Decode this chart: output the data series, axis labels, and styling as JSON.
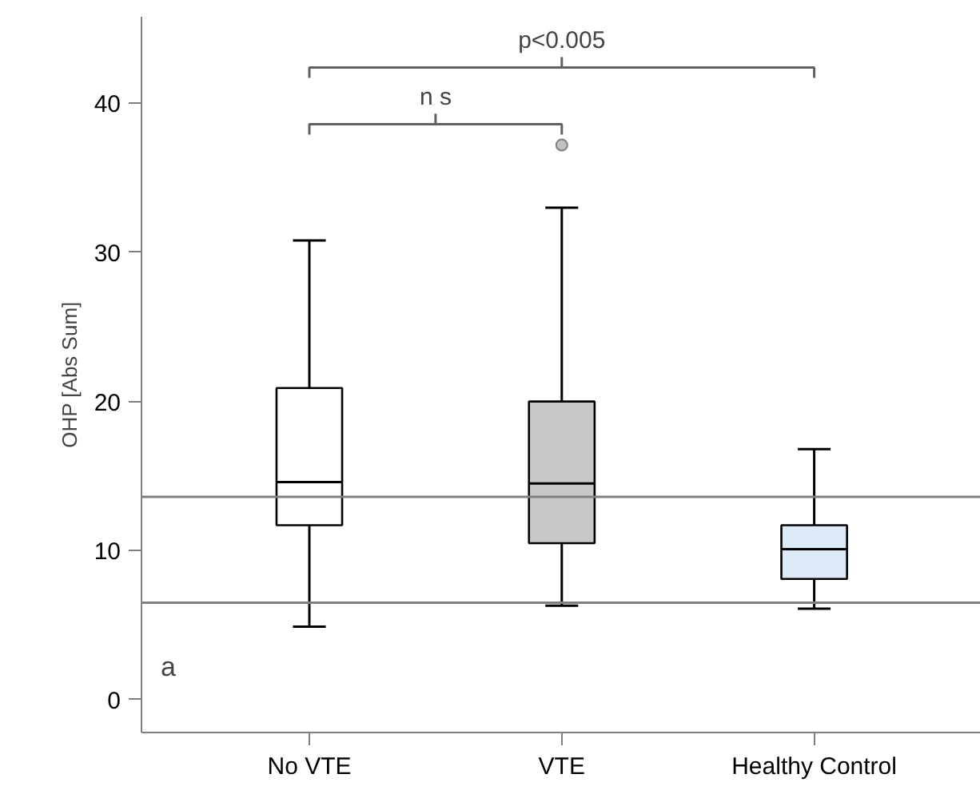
{
  "chart_data": {
    "type": "box",
    "ylabel": "OHP [Abs Sum]",
    "categories": [
      "No VTE",
      "VTE",
      "Healthy Control"
    ],
    "colors": [
      "#ffffff",
      "#c8c8c8",
      "#ddeaf8"
    ],
    "boxes": [
      {
        "low": 4.9,
        "q1": 11.7,
        "median": 14.6,
        "q3": 20.9,
        "high": 30.8
      },
      {
        "low": 6.3,
        "q1": 10.5,
        "median": 14.5,
        "q3": 20.0,
        "high": 33.0,
        "outliers": [
          37.2
        ]
      },
      {
        "low": 6.1,
        "q1": 8.1,
        "median": 10.1,
        "q3": 11.7,
        "high": 16.8
      }
    ],
    "ylim": [
      -2.2,
      45.8
    ],
    "yticks": [
      0,
      10,
      20,
      30,
      40
    ],
    "grid": false,
    "ref_lines": [
      {
        "axis": "y",
        "value": 13.6,
        "color": "#808080"
      },
      {
        "axis": "y",
        "value": 6.5,
        "color": "#808080"
      }
    ],
    "annotations": [
      "n s",
      "p<0.005",
      "a"
    ]
  }
}
